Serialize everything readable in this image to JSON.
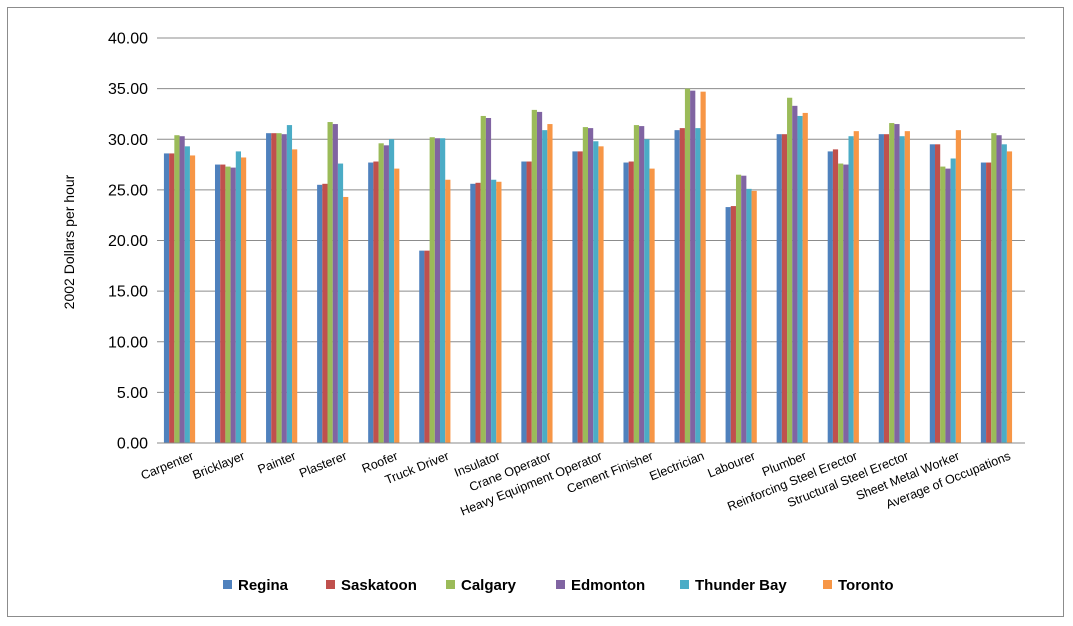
{
  "chart_data": {
    "type": "bar",
    "ylabel": "2002 Dollars per hour",
    "xlabel": "",
    "title": "",
    "ylim": [
      0,
      40
    ],
    "yticks": [
      "0.00",
      "5.00",
      "10.00",
      "15.00",
      "20.00",
      "25.00",
      "30.00",
      "35.00",
      "40.00"
    ],
    "grid": true,
    "legend_position": "bottom",
    "categories": [
      "Carpenter",
      "Bricklayer",
      "Painter",
      "Plasterer",
      "Roofer",
      "Truck Driver",
      "Insulator",
      "Crane Operator",
      "Heavy Equipment Operator",
      "Cement Finisher",
      "Electrician",
      "Labourer",
      "Plumber",
      "Reinforcing Steel Erector",
      "Structural Steel Erector",
      "Sheet Metal Worker",
      "Average of Occupations"
    ],
    "series": [
      {
        "name": "Regina",
        "color": "#4f81bd",
        "values": [
          28.6,
          27.5,
          30.6,
          25.5,
          27.7,
          19.0,
          25.6,
          27.8,
          28.8,
          27.7,
          30.9,
          23.3,
          30.5,
          28.8,
          30.5,
          29.5,
          27.7
        ]
      },
      {
        "name": "Saskatoon",
        "color": "#c0504d",
        "values": [
          28.6,
          27.5,
          30.6,
          25.6,
          27.8,
          19.0,
          25.7,
          27.8,
          28.8,
          27.8,
          31.1,
          23.4,
          30.5,
          29.0,
          30.5,
          29.5,
          27.7
        ]
      },
      {
        "name": "Calgary",
        "color": "#9bbb59",
        "values": [
          30.4,
          27.3,
          30.6,
          31.7,
          29.6,
          30.2,
          32.3,
          32.9,
          31.2,
          31.4,
          35.0,
          26.5,
          34.1,
          27.6,
          31.6,
          27.3,
          30.6
        ]
      },
      {
        "name": "Edmonton",
        "color": "#8064a2",
        "values": [
          30.3,
          27.2,
          30.5,
          31.5,
          29.4,
          30.1,
          32.1,
          32.7,
          31.1,
          31.3,
          34.8,
          26.4,
          33.3,
          27.5,
          31.5,
          27.1,
          30.4
        ]
      },
      {
        "name": "Thunder Bay",
        "color": "#4bacc6",
        "values": [
          29.3,
          28.8,
          31.4,
          27.6,
          30.0,
          30.1,
          26.0,
          30.9,
          29.8,
          30.0,
          31.1,
          25.1,
          32.3,
          30.3,
          30.3,
          28.1,
          29.5
        ]
      },
      {
        "name": "Toronto",
        "color": "#f79646",
        "values": [
          28.4,
          28.2,
          29.0,
          24.3,
          27.1,
          26.0,
          25.8,
          31.5,
          29.3,
          27.1,
          34.7,
          24.9,
          32.6,
          30.8,
          30.8,
          30.9,
          28.8
        ]
      }
    ]
  }
}
